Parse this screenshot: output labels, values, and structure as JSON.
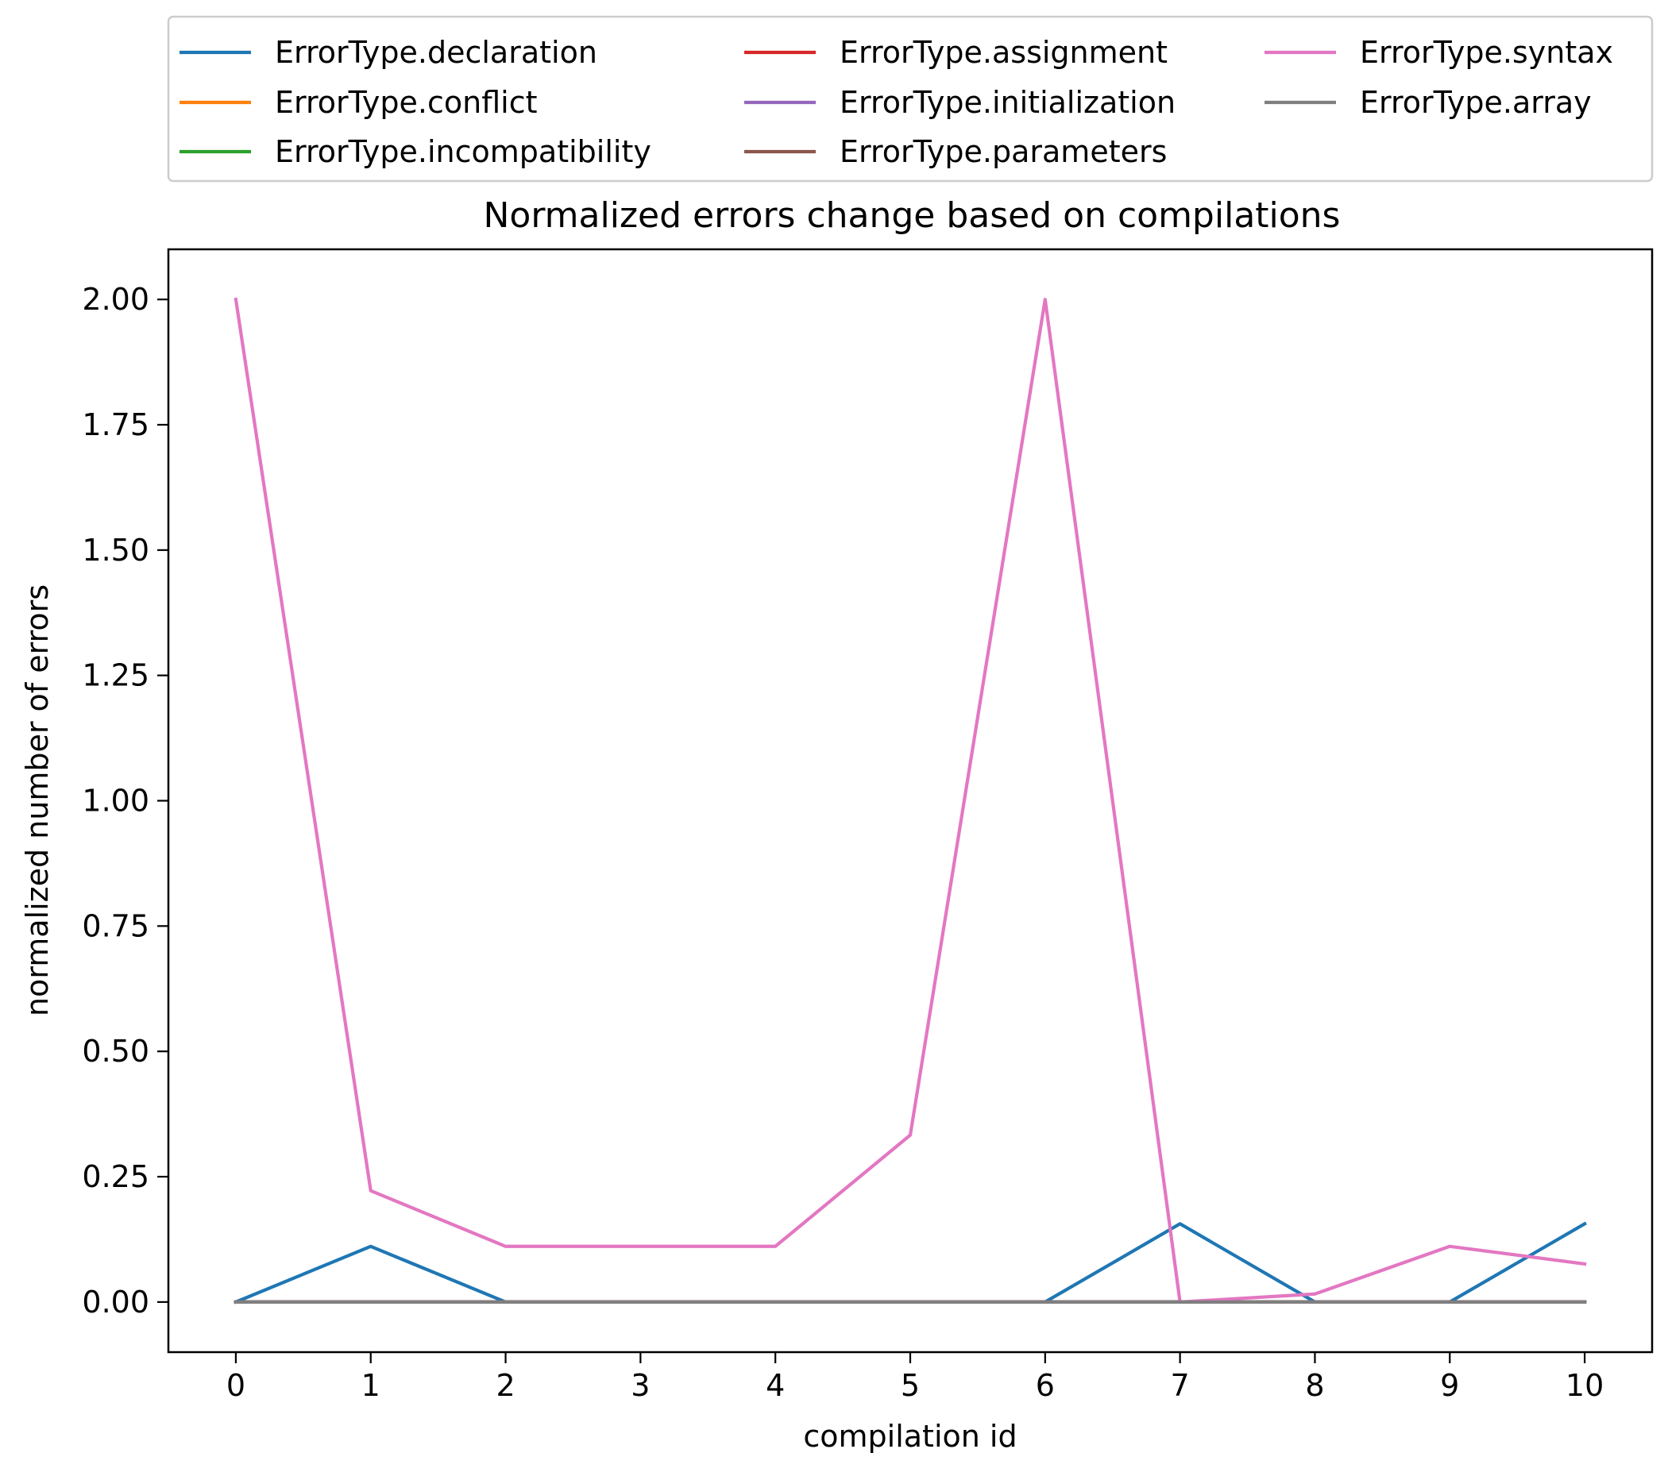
{
  "chart_data": {
    "type": "line",
    "title": "Normalized errors change based on compilations",
    "xlabel": "compilation id",
    "ylabel": "normalized number of errors",
    "xlim": [
      -0.5,
      10.5
    ],
    "ylim": [
      -0.1,
      2.1
    ],
    "xticks": [
      0,
      1,
      2,
      3,
      4,
      5,
      6,
      7,
      8,
      9,
      10
    ],
    "xtick_labels": [
      "0",
      "1",
      "2",
      "3",
      "4",
      "5",
      "6",
      "7",
      "8",
      "9",
      "10"
    ],
    "yticks": [
      0.0,
      0.25,
      0.5,
      0.75,
      1.0,
      1.25,
      1.5,
      1.75,
      2.0
    ],
    "ytick_labels": [
      "0.00",
      "0.25",
      "0.50",
      "0.75",
      "1.00",
      "1.25",
      "1.50",
      "1.75",
      "2.00"
    ],
    "grid": false,
    "legend_position": "above plot, three columns",
    "x": [
      0,
      1,
      2,
      3,
      4,
      5,
      6,
      7,
      8,
      9,
      10
    ],
    "series": [
      {
        "name": "ErrorType.declaration",
        "color": "#1f77b4",
        "values": [
          0,
          0.111,
          0,
          0,
          0,
          0,
          0,
          0.156,
          0,
          0,
          0.156
        ]
      },
      {
        "name": "ErrorType.conflict",
        "color": "#ff7f0e",
        "values": [
          0,
          0,
          0,
          0,
          0,
          0,
          0,
          0,
          0,
          0,
          0
        ]
      },
      {
        "name": "ErrorType.incompatibility",
        "color": "#2ca02c",
        "values": [
          0,
          0,
          0,
          0,
          0,
          0,
          0,
          0,
          0,
          0,
          0
        ]
      },
      {
        "name": "ErrorType.assignment",
        "color": "#d62728",
        "values": [
          0,
          0,
          0,
          0,
          0,
          0,
          0,
          0,
          0,
          0,
          0
        ]
      },
      {
        "name": "ErrorType.initialization",
        "color": "#9467bd",
        "values": [
          0,
          0,
          0,
          0,
          0,
          0,
          0,
          0,
          0,
          0,
          0
        ]
      },
      {
        "name": "ErrorType.parameters",
        "color": "#8c564b",
        "values": [
          0,
          0,
          0,
          0,
          0,
          0,
          0,
          0,
          0,
          0,
          0
        ]
      },
      {
        "name": "ErrorType.syntax",
        "color": "#e377c2",
        "values": [
          2.0,
          0.222,
          0.111,
          0.111,
          0.111,
          0.333,
          2.0,
          0,
          0.016,
          0.111,
          0.076
        ]
      },
      {
        "name": "ErrorType.array",
        "color": "#7f7f7f",
        "values": [
          0,
          0,
          0,
          0,
          0,
          0,
          0,
          0,
          0,
          0,
          0
        ]
      }
    ]
  }
}
